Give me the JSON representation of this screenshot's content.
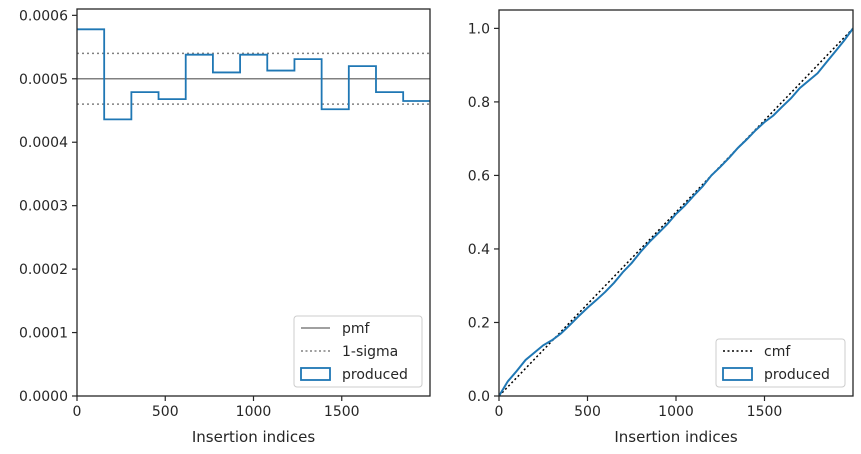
{
  "chart_data": [
    {
      "type": "step",
      "xlabel": "Insertion indices",
      "ylabel": "",
      "xlim": [
        0,
        2000
      ],
      "ylim": [
        0,
        0.00061
      ],
      "xticks": [
        0,
        500,
        1000,
        1500
      ],
      "xtick_labels": [
        "0",
        "500",
        "1000",
        "1500"
      ],
      "yticks": [
        0,
        0.0001,
        0.0002,
        0.0003,
        0.0004,
        0.0005,
        0.0006
      ],
      "ytick_labels": [
        "0.0000",
        "0.0001",
        "0.0002",
        "0.0003",
        "0.0004",
        "0.0005",
        "0.0006"
      ],
      "grid": false,
      "legend_position": "lower right",
      "reference_lines": [
        {
          "name": "pmf",
          "y": 0.0005,
          "style": "solid",
          "color": "#808080"
        },
        {
          "name": "1-sigma",
          "y": 0.00054,
          "style": "dotted",
          "color": "#808080"
        },
        {
          "name": "1-sigma",
          "y": 0.00046,
          "style": "dotted",
          "color": "#808080"
        }
      ],
      "series": [
        {
          "name": "produced",
          "color": "#1f77b4",
          "bin_edges": [
            0,
            154,
            308,
            462,
            616,
            770,
            924,
            1078,
            1232,
            1386,
            1540,
            1694,
            1848,
            2000
          ],
          "values": [
            0.000578,
            0.000436,
            0.000479,
            0.000468,
            0.000538,
            0.00051,
            0.000538,
            0.000513,
            0.000531,
            0.000452,
            0.00052,
            0.000479,
            0.000465
          ]
        }
      ],
      "legend": [
        {
          "label": "pmf",
          "style": "solid",
          "color": "#808080"
        },
        {
          "label": "1-sigma",
          "style": "dotted",
          "color": "#808080"
        },
        {
          "label": "produced",
          "style": "box",
          "color": "#1f77b4"
        }
      ]
    },
    {
      "type": "line",
      "xlabel": "Insertion indices",
      "ylabel": "",
      "xlim": [
        0,
        2000
      ],
      "ylim": [
        0,
        1.05
      ],
      "xticks": [
        0,
        500,
        1000,
        1500
      ],
      "xtick_labels": [
        "0",
        "500",
        "1000",
        "1500"
      ],
      "yticks": [
        0,
        0.2,
        0.4,
        0.6,
        0.8,
        1.0
      ],
      "ytick_labels": [
        "0.0",
        "0.2",
        "0.4",
        "0.6",
        "0.8",
        "1.0"
      ],
      "grid": false,
      "legend_position": "lower right",
      "series": [
        {
          "name": "cmf",
          "style": "dotted",
          "color": "#000000",
          "x": [
            0,
            2000
          ],
          "y": [
            0,
            1.0
          ]
        },
        {
          "name": "produced",
          "style": "solid",
          "color": "#1f77b4",
          "x": [
            0,
            50,
            100,
            150,
            200,
            250,
            300,
            350,
            400,
            450,
            500,
            550,
            600,
            650,
            700,
            750,
            800,
            850,
            900,
            950,
            1000,
            1050,
            1100,
            1150,
            1200,
            1250,
            1300,
            1350,
            1400,
            1450,
            1500,
            1550,
            1600,
            1650,
            1700,
            1750,
            1800,
            1850,
            1900,
            1950,
            2000
          ],
          "y": [
            0,
            0.04,
            0.068,
            0.098,
            0.118,
            0.138,
            0.152,
            0.17,
            0.193,
            0.217,
            0.24,
            0.261,
            0.283,
            0.308,
            0.337,
            0.362,
            0.392,
            0.419,
            0.443,
            0.467,
            0.495,
            0.518,
            0.545,
            0.57,
            0.6,
            0.623,
            0.648,
            0.675,
            0.698,
            0.723,
            0.745,
            0.763,
            0.787,
            0.81,
            0.838,
            0.858,
            0.878,
            0.908,
            0.937,
            0.967,
            1.0
          ]
        }
      ],
      "legend": [
        {
          "label": "cmf",
          "style": "dotted",
          "color": "#000000"
        },
        {
          "label": "produced",
          "style": "box",
          "color": "#1f77b4"
        }
      ]
    }
  ]
}
